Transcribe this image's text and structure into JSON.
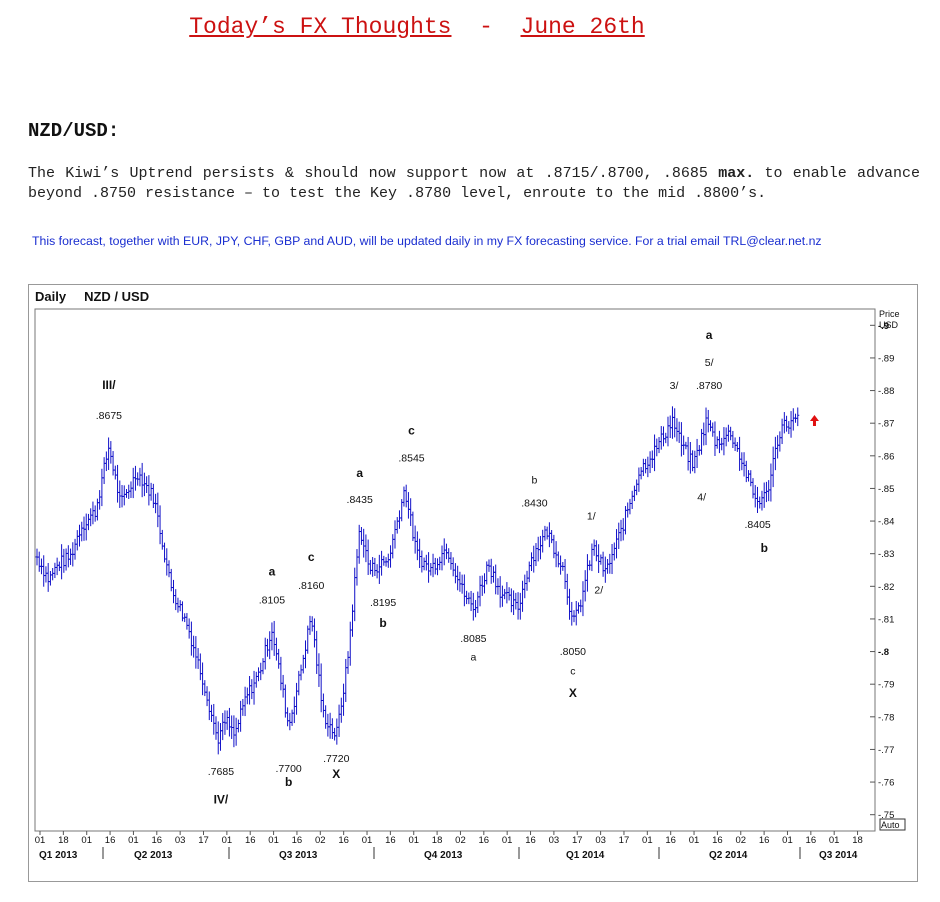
{
  "header": {
    "title": "Today’s FX Thoughts",
    "separator": "-",
    "date": "June 26th"
  },
  "section": {
    "pair": "NZD/USD:",
    "text_before": "The Kiwi’s Uptrend persists & should now support now at .8715/.8700, .8685 ",
    "text_bold": "max.",
    "text_after": " to enable advance beyond .8750 resistance – to test the Key .8780 level, enroute to the mid .8800’s.",
    "note": "This forecast, together with EUR, JPY, CHF, GBP and AUD, will be updated daily in my FX forecasting service. For a trial email TRL@clear.net.nz"
  },
  "colors": {
    "title": "#cc1111",
    "note": "#1a2ed0",
    "bars": "#1010c8",
    "arrow": "#e01010"
  },
  "chart_data": {
    "type": "line",
    "style": "OHLC price bars",
    "title": "NZD / USD",
    "period": "Daily",
    "ylabel": "Price USD",
    "ylim": [
      0.745,
      0.905
    ],
    "yticks": [
      0.9,
      0.89,
      0.88,
      0.87,
      0.86,
      0.85,
      0.84,
      0.83,
      0.82,
      0.81,
      0.8,
      0.79,
      0.78,
      0.77,
      0.76,
      0.75
    ],
    "ytick_labels": [
      "0.9",
      "0.89",
      "0.88",
      "0.87",
      "0.86",
      "0.85",
      "0.84",
      "0.83",
      "0.82",
      "0.81",
      "0.8",
      "0.79",
      "0.78",
      "0.77",
      "0.76",
      "0.75"
    ],
    "auto_label": "Auto",
    "grid": false,
    "xtick_labels": [
      "01",
      "18",
      "01",
      "16",
      "01",
      "16",
      "03",
      "17",
      "01",
      "16",
      "01",
      "16",
      "02",
      "16",
      "01",
      "16",
      "01",
      "18",
      "02",
      "16",
      "01",
      "16",
      "03",
      "17",
      "03",
      "17",
      "01",
      "16",
      "01",
      "16",
      "02",
      "16",
      "01",
      "16",
      "01",
      "18"
    ],
    "quarters": [
      "Q1 2013",
      "Q2 2013",
      "Q3 2013",
      "Q4 2013",
      "Q1 2014",
      "Q2 2014",
      "Q3 2014"
    ],
    "anchors": [
      [
        0,
        0.829
      ],
      [
        0.014,
        0.822
      ],
      [
        0.026,
        0.827
      ],
      [
        0.04,
        0.829
      ],
      [
        0.052,
        0.838
      ],
      [
        0.07,
        0.843
      ],
      [
        0.086,
        0.863
      ],
      [
        0.1,
        0.845
      ],
      [
        0.12,
        0.855
      ],
      [
        0.14,
        0.847
      ],
      [
        0.16,
        0.82
      ],
      [
        0.18,
        0.808
      ],
      [
        0.2,
        0.79
      ],
      [
        0.216,
        0.773
      ],
      [
        0.226,
        0.779
      ],
      [
        0.236,
        0.774
      ],
      [
        0.25,
        0.786
      ],
      [
        0.265,
        0.793
      ],
      [
        0.281,
        0.807
      ],
      [
        0.291,
        0.792
      ],
      [
        0.301,
        0.777
      ],
      [
        0.313,
        0.791
      ],
      [
        0.328,
        0.811
      ],
      [
        0.342,
        0.781
      ],
      [
        0.358,
        0.774
      ],
      [
        0.371,
        0.796
      ],
      [
        0.386,
        0.838
      ],
      [
        0.398,
        0.825
      ],
      [
        0.42,
        0.828
      ],
      [
        0.44,
        0.85
      ],
      [
        0.454,
        0.83
      ],
      [
        0.47,
        0.825
      ],
      [
        0.49,
        0.832
      ],
      [
        0.51,
        0.818
      ],
      [
        0.522,
        0.813
      ],
      [
        0.54,
        0.827
      ],
      [
        0.555,
        0.818
      ],
      [
        0.575,
        0.813
      ],
      [
        0.59,
        0.828
      ],
      [
        0.61,
        0.837
      ],
      [
        0.63,
        0.825
      ],
      [
        0.641,
        0.808
      ],
      [
        0.65,
        0.815
      ],
      [
        0.665,
        0.832
      ],
      [
        0.68,
        0.824
      ],
      [
        0.7,
        0.838
      ],
      [
        0.72,
        0.855
      ],
      [
        0.74,
        0.862
      ],
      [
        0.76,
        0.871
      ],
      [
        0.77,
        0.864
      ],
      [
        0.785,
        0.857
      ],
      [
        0.801,
        0.871
      ],
      [
        0.812,
        0.864
      ],
      [
        0.83,
        0.867
      ],
      [
        0.845,
        0.857
      ],
      [
        0.86,
        0.846
      ],
      [
        0.873,
        0.848
      ],
      [
        0.88,
        0.858
      ],
      [
        0.89,
        0.869
      ],
      [
        0.91,
        0.871
      ]
    ],
    "annotations": [
      {
        "text": "III/",
        "x": 0.086,
        "y": 0.8805,
        "bold": true
      },
      {
        "text": ".8675",
        "x": 0.086,
        "y": 0.8713
      },
      {
        "text": ".7685",
        "x": 0.22,
        "y": 0.7621
      },
      {
        "text": "IV/",
        "x": 0.22,
        "y": 0.7535,
        "bold": true
      },
      {
        "text": "a",
        "x": 0.281,
        "y": 0.8233,
        "bold": true
      },
      {
        "text": ".8105",
        "x": 0.281,
        "y": 0.8147
      },
      {
        "text": ".7700",
        "x": 0.301,
        "y": 0.7631
      },
      {
        "text": "b",
        "x": 0.301,
        "y": 0.7588,
        "bold": true
      },
      {
        "text": "c",
        "x": 0.328,
        "y": 0.8278,
        "bold": true
      },
      {
        "text": ".8160",
        "x": 0.328,
        "y": 0.8191
      },
      {
        "text": ".7720",
        "x": 0.358,
        "y": 0.7661
      },
      {
        "text": "X",
        "x": 0.358,
        "y": 0.7613,
        "bold": true
      },
      {
        "text": "a",
        "x": 0.386,
        "y": 0.8535,
        "bold": true
      },
      {
        "text": ".8435",
        "x": 0.386,
        "y": 0.8455
      },
      {
        "text": ".8195",
        "x": 0.414,
        "y": 0.814
      },
      {
        "text": "b",
        "x": 0.414,
        "y": 0.8075,
        "bold": true
      },
      {
        "text": "c",
        "x": 0.448,
        "y": 0.8665,
        "bold": true
      },
      {
        "text": ".8545",
        "x": 0.448,
        "y": 0.8583
      },
      {
        "text": ".8085",
        "x": 0.522,
        "y": 0.803
      },
      {
        "text": "a",
        "x": 0.522,
        "y": 0.7973
      },
      {
        "text": "b",
        "x": 0.595,
        "y": 0.8515
      },
      {
        "text": ".8430",
        "x": 0.595,
        "y": 0.8445
      },
      {
        "text": ".8050",
        "x": 0.641,
        "y": 0.7989
      },
      {
        "text": "c",
        "x": 0.641,
        "y": 0.793
      },
      {
        "text": "X",
        "x": 0.641,
        "y": 0.7861,
        "bold": true
      },
      {
        "text": "1/",
        "x": 0.663,
        "y": 0.8405
      },
      {
        "text": "2/",
        "x": 0.672,
        "y": 0.8178
      },
      {
        "text": "3/",
        "x": 0.762,
        "y": 0.8805
      },
      {
        "text": "a",
        "x": 0.804,
        "y": 0.8958,
        "bold": true
      },
      {
        "text": "5/",
        "x": 0.804,
        "y": 0.8875
      },
      {
        "text": ".8780",
        "x": 0.804,
        "y": 0.8805
      },
      {
        "text": "4/",
        "x": 0.795,
        "y": 0.8463
      },
      {
        "text": ".8405",
        "x": 0.862,
        "y": 0.8378
      },
      {
        "text": "b",
        "x": 0.87,
        "y": 0.8305,
        "bold": true
      }
    ]
  }
}
